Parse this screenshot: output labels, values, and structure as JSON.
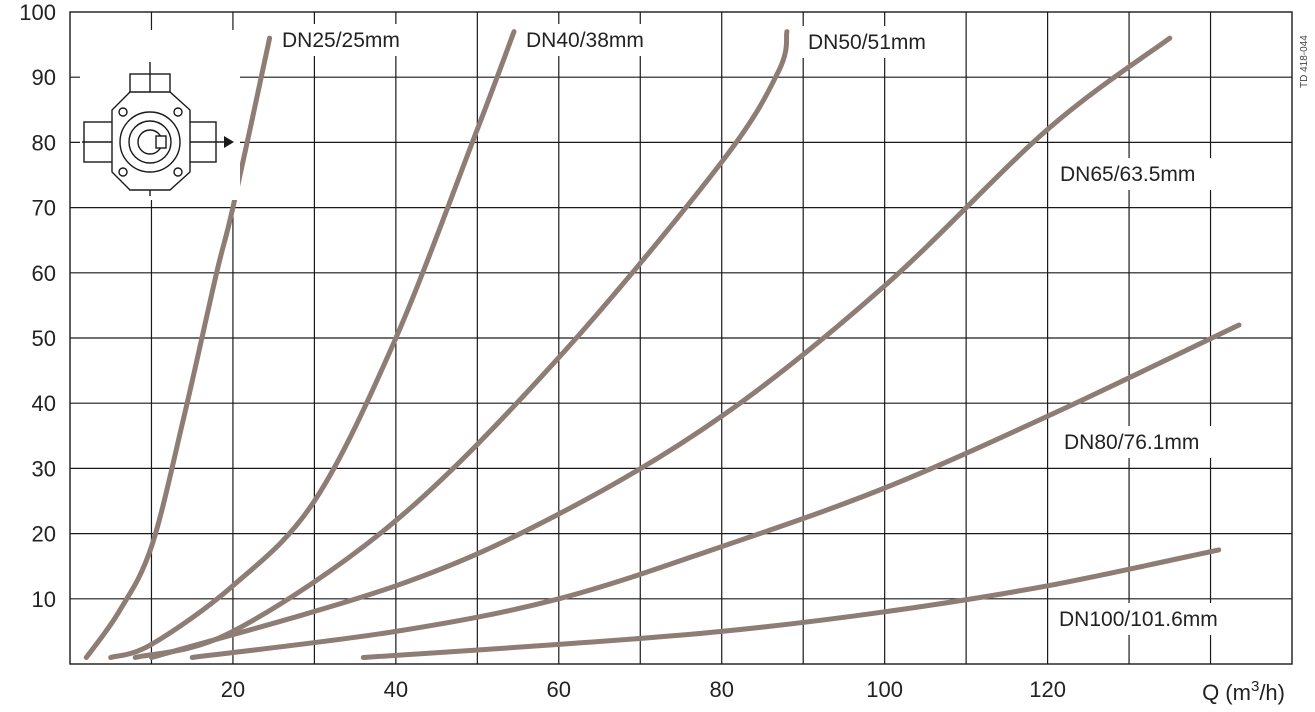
{
  "chart_data": {
    "type": "line",
    "x_unit_label": "Q (m³/h)",
    "x_unit_base": "Q (m",
    "x_unit_sup": "3",
    "x_unit_tail": "/h)",
    "x_tick_labels": [
      "20",
      "40",
      "60",
      "80",
      "100",
      "120"
    ],
    "y_tick_labels": [
      "10",
      "20",
      "30",
      "40",
      "50",
      "60",
      "70",
      "80",
      "90",
      "100"
    ],
    "xlim": [
      0,
      150
    ],
    "ylim": [
      0,
      100
    ],
    "grid": true,
    "ref_code": "TD 418-044",
    "series_color": "#8e7d74",
    "series": [
      {
        "name": "DN25/25mm",
        "x": [
          2,
          6,
          10,
          14,
          18,
          20,
          24.5
        ],
        "y": [
          1,
          8,
          18,
          38,
          60,
          70,
          96
        ]
      },
      {
        "name": "DN40/38mm",
        "x": [
          5,
          10,
          20,
          30,
          40,
          50,
          54.5
        ],
        "y": [
          1,
          3,
          12,
          25,
          50,
          82,
          97
        ]
      },
      {
        "name": "DN50/51mm",
        "x": [
          8,
          20,
          40,
          60,
          80,
          87,
          88
        ],
        "y": [
          1,
          5,
          22,
          47,
          77,
          91,
          97
        ]
      },
      {
        "name": "DN65/63.5mm",
        "x": [
          10,
          40,
          60,
          80,
          100,
          120,
          135
        ],
        "y": [
          1,
          12,
          23,
          38,
          58,
          82,
          96
        ]
      },
      {
        "name": "DN80/76.1mm",
        "x": [
          15,
          40,
          60,
          80,
          100,
          120,
          143.5
        ],
        "y": [
          1,
          5,
          10,
          18,
          27,
          38,
          52
        ]
      },
      {
        "name": "DN100/101.6mm",
        "x": [
          36,
          60,
          80,
          100,
          120,
          141
        ],
        "y": [
          1,
          3,
          5,
          8,
          12,
          17.5
        ]
      }
    ]
  }
}
